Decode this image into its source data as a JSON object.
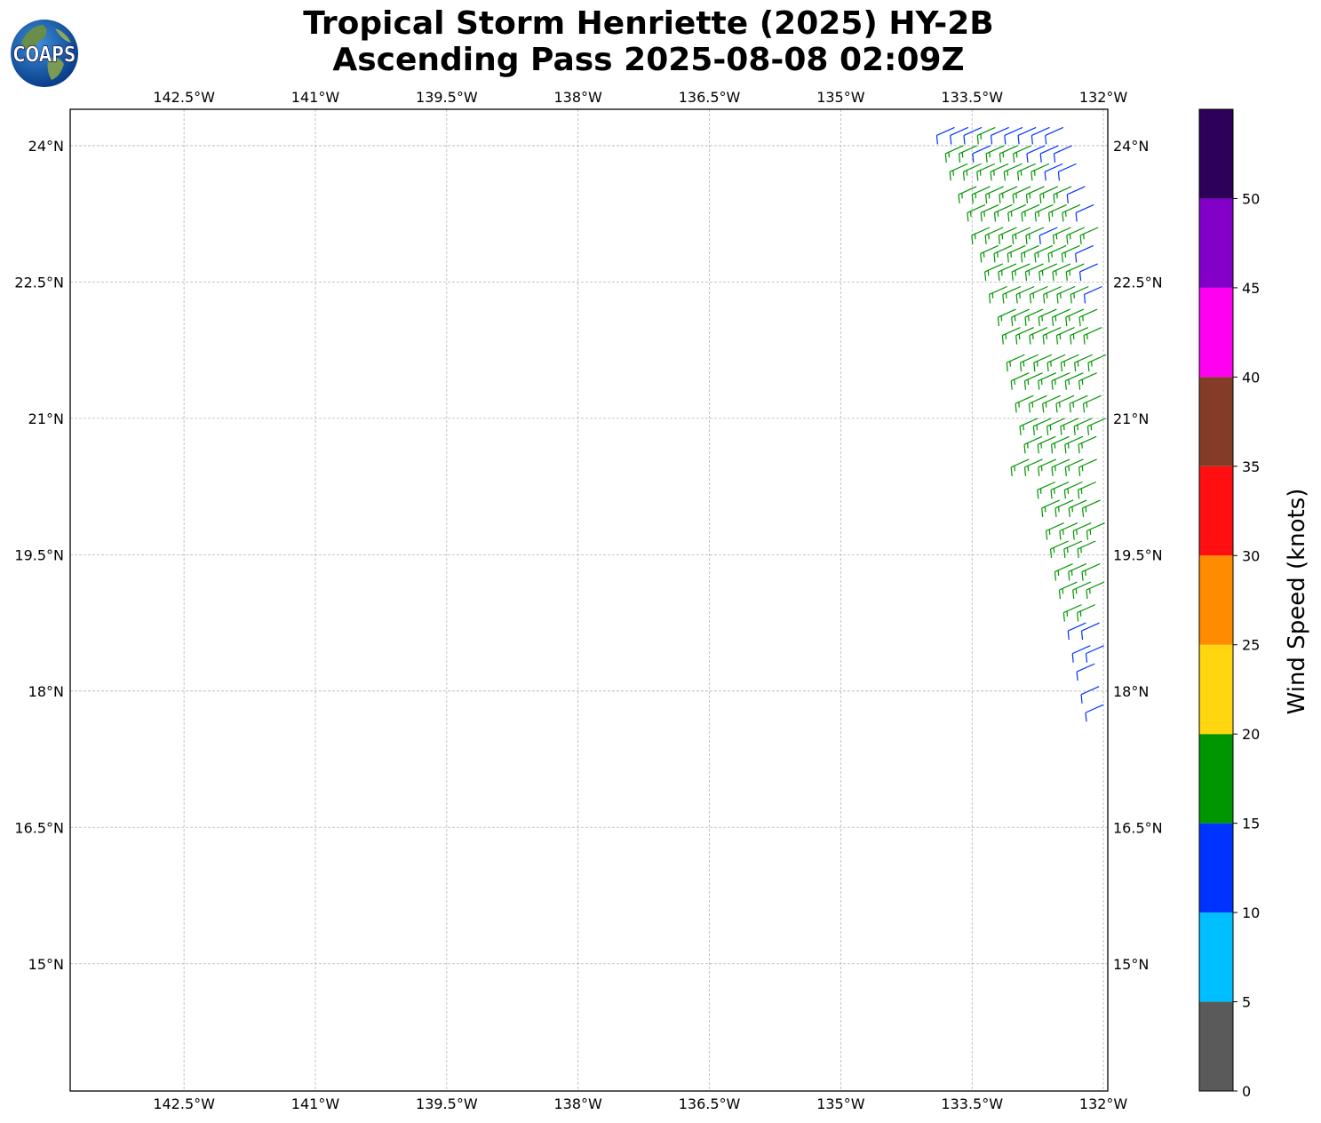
{
  "title_line1": "Tropical Storm Henriette (2025) HY-2B",
  "title_line2": "Ascending Pass 2025-08-08 02:09Z",
  "logo_text": "COAPS",
  "chart_data": {
    "type": "wind_barb_map",
    "xlim": [
      -143.8,
      -131.95
    ],
    "ylim": [
      13.6,
      24.4
    ],
    "x_ticks": [
      {
        "value": -142.5,
        "label": "142.5°W"
      },
      {
        "value": -141.0,
        "label": "141°W"
      },
      {
        "value": -139.5,
        "label": "139.5°W"
      },
      {
        "value": -138.0,
        "label": "138°W"
      },
      {
        "value": -136.5,
        "label": "136.5°W"
      },
      {
        "value": -135.0,
        "label": "135°W"
      },
      {
        "value": -133.5,
        "label": "133.5°W"
      },
      {
        "value": -132.0,
        "label": "132°W"
      }
    ],
    "y_ticks": [
      {
        "value": 24.0,
        "label": "24°N"
      },
      {
        "value": 22.5,
        "label": "22.5°N"
      },
      {
        "value": 21.0,
        "label": "21°N"
      },
      {
        "value": 19.5,
        "label": "19.5°N"
      },
      {
        "value": 18.0,
        "label": "18°N"
      },
      {
        "value": 16.5,
        "label": "16.5°N"
      },
      {
        "value": 15.0,
        "label": "15°N"
      }
    ],
    "grid": true,
    "colorbar": {
      "label": "Wind Speed (knots)",
      "bounds": [
        0,
        5,
        10,
        15,
        20,
        25,
        30,
        35,
        40,
        45,
        50,
        55
      ],
      "tick_labels": [
        "0",
        "5",
        "10",
        "15",
        "20",
        "25",
        "30",
        "35",
        "40",
        "45",
        "50"
      ],
      "colors": [
        "#5a5a5a",
        "#00bfff",
        "#0033ff",
        "#009600",
        "#ffd60f",
        "#ff8c00",
        "#ff0f0f",
        "#843c28",
        "#ff00f0",
        "#8200c8",
        "#2d005a"
      ]
    },
    "swath": {
      "description_of_rows": "rows of wind barbs from east-northeast, latitude and western-edge longitude per row",
      "wind_direction_deg_from": 70,
      "rows": [
        {
          "lat": 24.2,
          "west_lon": -133.7,
          "speeds": [
            13,
            13,
            13,
            18,
            13,
            13,
            13,
            13,
            13
          ]
        },
        {
          "lat": 24.0,
          "west_lon": -133.6,
          "speeds": [
            16,
            16,
            13,
            16,
            16,
            16,
            13,
            13,
            13
          ]
        },
        {
          "lat": 23.8,
          "west_lon": -133.55,
          "speeds": [
            16,
            16,
            16,
            16,
            16,
            16,
            16,
            13,
            13
          ]
        },
        {
          "lat": 23.55,
          "west_lon": -133.45,
          "speeds": [
            16,
            16,
            16,
            16,
            16,
            16,
            16,
            16,
            13
          ]
        },
        {
          "lat": 23.35,
          "west_lon": -133.35,
          "speeds": [
            16,
            16,
            16,
            16,
            16,
            16,
            16,
            16,
            13
          ]
        },
        {
          "lat": 23.1,
          "west_lon": -133.3,
          "speeds": [
            16,
            16,
            16,
            16,
            16,
            13,
            16,
            16,
            16
          ]
        },
        {
          "lat": 22.9,
          "west_lon": -133.2,
          "speeds": [
            16,
            16,
            16,
            16,
            16,
            16,
            16,
            13,
            13
          ]
        },
        {
          "lat": 22.7,
          "west_lon": -133.15,
          "speeds": [
            16,
            16,
            16,
            16,
            16,
            16,
            16,
            13,
            13
          ]
        },
        {
          "lat": 22.45,
          "west_lon": -133.1,
          "speeds": [
            16,
            16,
            16,
            16,
            16,
            16,
            16,
            13
          ]
        },
        {
          "lat": 22.2,
          "west_lon": -133.0,
          "speeds": [
            16,
            16,
            16,
            16,
            16,
            16,
            16,
            16
          ]
        },
        {
          "lat": 22.0,
          "west_lon": -132.95,
          "speeds": [
            16,
            16,
            16,
            16,
            16,
            16,
            16,
            16
          ]
        },
        {
          "lat": 21.7,
          "west_lon": -132.9,
          "speeds": [
            16,
            16,
            16,
            16,
            16,
            16,
            16,
            16
          ]
        },
        {
          "lat": 21.5,
          "west_lon": -132.85,
          "speeds": [
            16,
            16,
            16,
            16,
            16,
            16,
            16,
            16
          ]
        },
        {
          "lat": 21.25,
          "west_lon": -132.8,
          "speeds": [
            16,
            16,
            16,
            16,
            16,
            16,
            13
          ]
        },
        {
          "lat": 21.0,
          "west_lon": -132.75,
          "speeds": [
            16,
            16,
            16,
            16,
            16,
            16,
            16
          ]
        },
        {
          "lat": 20.8,
          "west_lon": -132.7,
          "speeds": [
            16,
            16,
            16,
            16,
            16,
            16,
            16
          ]
        },
        {
          "lat": 20.55,
          "west_lon": -132.85,
          "speeds": [
            17,
            17,
            16,
            16,
            16,
            16,
            16,
            16
          ]
        },
        {
          "lat": 20.3,
          "west_lon": -132.55,
          "speeds": [
            16,
            16,
            16,
            16,
            16,
            16
          ]
        },
        {
          "lat": 20.1,
          "west_lon": -132.5,
          "speeds": [
            16,
            16,
            16,
            16,
            16,
            16
          ]
        },
        {
          "lat": 19.85,
          "west_lon": -132.45,
          "speeds": [
            16,
            16,
            16,
            16,
            16
          ]
        },
        {
          "lat": 19.65,
          "west_lon": -132.4,
          "speeds": [
            16,
            16,
            16,
            16,
            16
          ]
        },
        {
          "lat": 19.4,
          "west_lon": -132.35,
          "speeds": [
            16,
            16,
            16,
            16
          ]
        },
        {
          "lat": 19.2,
          "west_lon": -132.3,
          "speeds": [
            16,
            16,
            16
          ]
        },
        {
          "lat": 18.95,
          "west_lon": -132.25,
          "speeds": [
            16,
            16,
            16
          ]
        },
        {
          "lat": 18.75,
          "west_lon": -132.2,
          "speeds": [
            13,
            13
          ]
        },
        {
          "lat": 18.5,
          "west_lon": -132.15,
          "speeds": [
            13,
            13
          ]
        },
        {
          "lat": 18.3,
          "west_lon": -132.1,
          "speeds": [
            13
          ]
        },
        {
          "lat": 18.05,
          "west_lon": -132.05,
          "speeds": [
            13
          ]
        },
        {
          "lat": 17.85,
          "west_lon": -132.0,
          "speeds": [
            13
          ]
        }
      ]
    }
  }
}
